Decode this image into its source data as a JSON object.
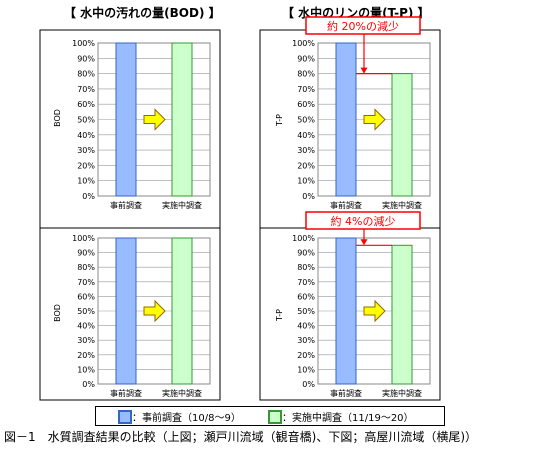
{
  "titles": {
    "left": "【 水中の汚れの量(BOD) 】",
    "right": "【 水中のリンの量(T-P) 】"
  },
  "legend": {
    "pre_label": "：事前調査（10/8～9）",
    "during_label": "：実施中調査（11/19～20）"
  },
  "caption": "図－1　水質調査結果の比較（上図；瀬戸川流域（観音橋)、下図；高屋川流域（横尾)）",
  "colors": {
    "pre_fill": "#99bbff",
    "pre_stroke": "#3366cc",
    "during_fill": "#ccffcc",
    "during_stroke": "#339933",
    "arrow_fill": "#ffff00",
    "arrow_stroke": "#996600",
    "annotation_red": "#ff0000"
  },
  "chart_data": [
    {
      "type": "bar",
      "ylabel": "BOD",
      "categories": [
        "事前調査",
        "実施中調査"
      ],
      "values": [
        100,
        100
      ],
      "yticks": [
        "100%",
        "90%",
        "80%",
        "70%",
        "60%",
        "50%",
        "40%",
        "30%",
        "20%",
        "10%",
        "0%"
      ],
      "ylim": [
        0,
        100
      ],
      "grid": true,
      "annotation": ""
    },
    {
      "type": "bar",
      "ylabel": "T-P",
      "categories": [
        "事前調査",
        "実施中調査"
      ],
      "values": [
        100,
        80
      ],
      "yticks": [
        "100%",
        "90%",
        "80%",
        "70%",
        "60%",
        "50%",
        "40%",
        "30%",
        "20%",
        "10%",
        "0%"
      ],
      "ylim": [
        0,
        100
      ],
      "grid": true,
      "annotation": "約 20%の減少"
    },
    {
      "type": "bar",
      "ylabel": "BOD",
      "categories": [
        "事前調査",
        "実施中調査"
      ],
      "values": [
        100,
        100
      ],
      "yticks": [
        "100%",
        "90%",
        "80%",
        "70%",
        "60%",
        "50%",
        "40%",
        "30%",
        "20%",
        "10%",
        "0%"
      ],
      "ylim": [
        0,
        100
      ],
      "grid": true,
      "annotation": ""
    },
    {
      "type": "bar",
      "ylabel": "T-P",
      "categories": [
        "事前調査",
        "実施中調査"
      ],
      "values": [
        100,
        95
      ],
      "yticks": [
        "100%",
        "90%",
        "80%",
        "70%",
        "60%",
        "50%",
        "40%",
        "30%",
        "20%",
        "10%",
        "0%"
      ],
      "ylim": [
        0,
        100
      ],
      "grid": true,
      "annotation": "約 4%の減少"
    }
  ]
}
